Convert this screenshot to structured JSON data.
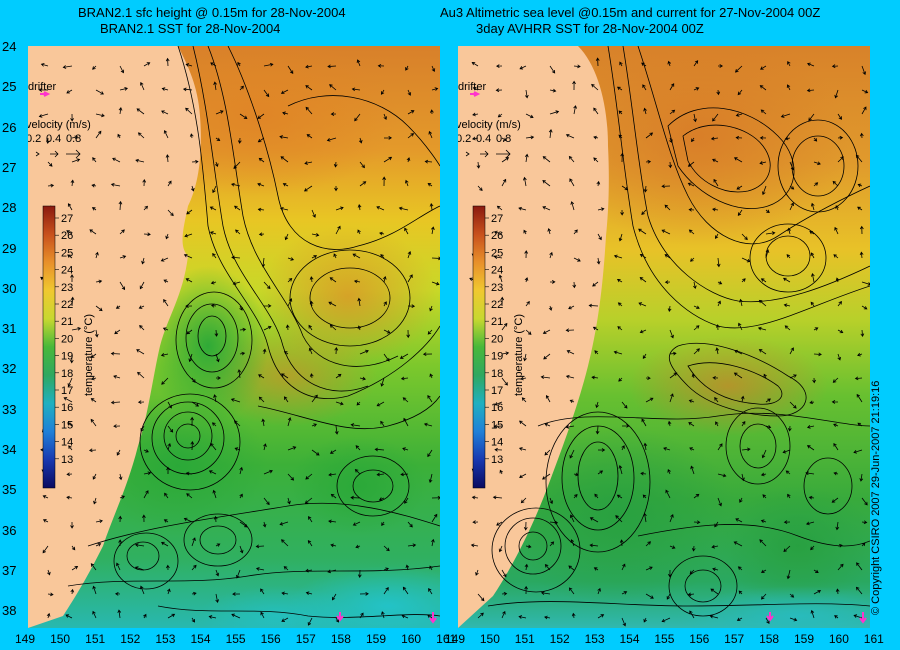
{
  "left_panel": {
    "title_line1": "BRAN2.1 sfc height @ 0.15m for 28-Nov-2004",
    "title_line2": "BRAN2.1 SST for 28-Nov-2004",
    "drifter_label": "drifter",
    "velocity_label": "velocity (m/s)",
    "velocity_scale": [
      "0.2",
      "0.4",
      "0.8"
    ],
    "colorbar_label": "temperature (°C)",
    "colorbar_ticks": [
      "27",
      "26",
      "25",
      "24",
      "23",
      "22",
      "21",
      "20",
      "19",
      "18",
      "17",
      "16",
      "15",
      "14",
      "13"
    ]
  },
  "right_panel": {
    "title_line1": "Au3 Altimetric sea level  @0.15m and current for 27-Nov-2004 00Z",
    "title_line2": "3day AVHRR SST for 28-Nov-2004 00Z",
    "drifter_label": "drifter",
    "velocity_label": "velocity (m/s)",
    "velocity_scale": [
      "0.2",
      "0.4",
      "0.8"
    ],
    "colorbar_label": "temperature (°C)",
    "colorbar_ticks": [
      "27",
      "26",
      "25",
      "24",
      "23",
      "22",
      "21",
      "20",
      "19",
      "18",
      "17",
      "16",
      "15",
      "14",
      "13"
    ]
  },
  "latitude_labels": [
    "24",
    "25",
    "26",
    "27",
    "28",
    "29",
    "30",
    "31",
    "32",
    "33",
    "34",
    "35",
    "36",
    "37",
    "38"
  ],
  "longitude_labels": [
    "149",
    "150",
    "151",
    "152",
    "153",
    "154",
    "155",
    "156",
    "157",
    "158",
    "159",
    "160",
    "161"
  ],
  "copyright": "© Copyright CSIRO 2007    29-Jun-2007 21:19:16",
  "colors": {
    "background": "#00ccff",
    "land": "#f9c79a",
    "warm": "#e08a2a",
    "mid": "#e8d020",
    "cool": "#22aa33",
    "cold": "#22bbcc",
    "drifter": "#ff33cc"
  }
}
